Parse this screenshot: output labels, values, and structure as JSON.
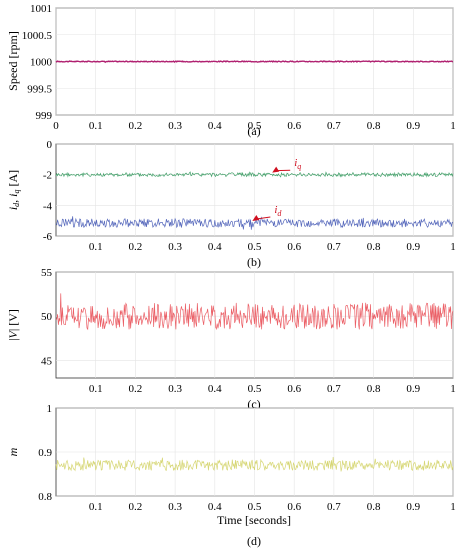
{
  "chart_data": [
    {
      "type": "line",
      "panel": "(a)",
      "ylabel": "Speed [rpm]",
      "ylim": [
        999,
        1001
      ],
      "yticks": [
        "999",
        "999.5",
        "1000",
        "1000.5",
        "1001"
      ],
      "xlim": [
        0,
        1
      ],
      "xticks": [
        "0",
        "0.1",
        "0.2",
        "0.3",
        "0.4",
        "0.5",
        "0.6",
        "0.7",
        "0.8",
        "0.9",
        "1"
      ],
      "grid": true,
      "series": [
        {
          "color": "#b02070",
          "mean": 1000,
          "amplitude": 0.008,
          "values": [
            [
              0,
              1000
            ],
            [
              1,
              1000
            ]
          ]
        }
      ]
    },
    {
      "type": "line",
      "panel": "(b)",
      "ylabel": "i_d, i_q [A]",
      "ylim": [
        -6,
        0
      ],
      "yticks": [
        "-6",
        "-4",
        "-2",
        "0"
      ],
      "xlim": [
        0,
        1
      ],
      "xticks": [
        "0.1",
        "0.2",
        "0.3",
        "0.4",
        "0.5",
        "0.6",
        "0.7",
        "0.8",
        "0.9",
        "1"
      ],
      "grid": true,
      "annotations": [
        {
          "text": "i_q",
          "x": 0.6,
          "y": -1.45
        },
        {
          "text": "i_d",
          "x": 0.55,
          "y": -4.5
        }
      ],
      "series": [
        {
          "name": "i_q",
          "color": "#1f8f4e",
          "mean": -2.0,
          "amplitude": 0.12,
          "values": [
            [
              0,
              -2.0
            ],
            [
              1,
              -2.0
            ]
          ]
        },
        {
          "name": "i_d",
          "color": "#3a4fb0",
          "mean": -5.15,
          "amplitude": 0.28,
          "values": [
            [
              0,
              -5.15
            ],
            [
              1,
              -5.15
            ]
          ]
        }
      ]
    },
    {
      "type": "line",
      "panel": "(c)",
      "ylabel": "|V| [V]",
      "ylim": [
        43,
        55
      ],
      "yticks": [
        "45",
        "50",
        "55"
      ],
      "xlim": [
        0,
        1
      ],
      "xticks": [
        "0.1",
        "0.2",
        "0.3",
        "0.4",
        "0.5",
        "0.6",
        "0.7",
        "0.8",
        "0.9",
        "1"
      ],
      "grid": true,
      "series": [
        {
          "color": "#e8434b",
          "mean": 50,
          "amplitude": 1.5,
          "values": [
            [
              0,
              50
            ],
            [
              1,
              50
            ]
          ]
        }
      ]
    },
    {
      "type": "line",
      "panel": "(d)",
      "ylabel": "m",
      "ylim": [
        0.8,
        1
      ],
      "yticks": [
        "0.8",
        "0.9",
        "1"
      ],
      "xlim": [
        0,
        1
      ],
      "xticks": [
        "0.1",
        "0.2",
        "0.3",
        "0.4",
        "0.5",
        "0.6",
        "0.7",
        "0.8",
        "0.9",
        "1"
      ],
      "xlabel": "Time [seconds]",
      "grid": true,
      "series": [
        {
          "color": "#cfcf5a",
          "mean": 0.87,
          "amplitude": 0.012,
          "values": [
            [
              0,
              0.87
            ],
            [
              1,
              0.87
            ]
          ]
        }
      ]
    }
  ]
}
